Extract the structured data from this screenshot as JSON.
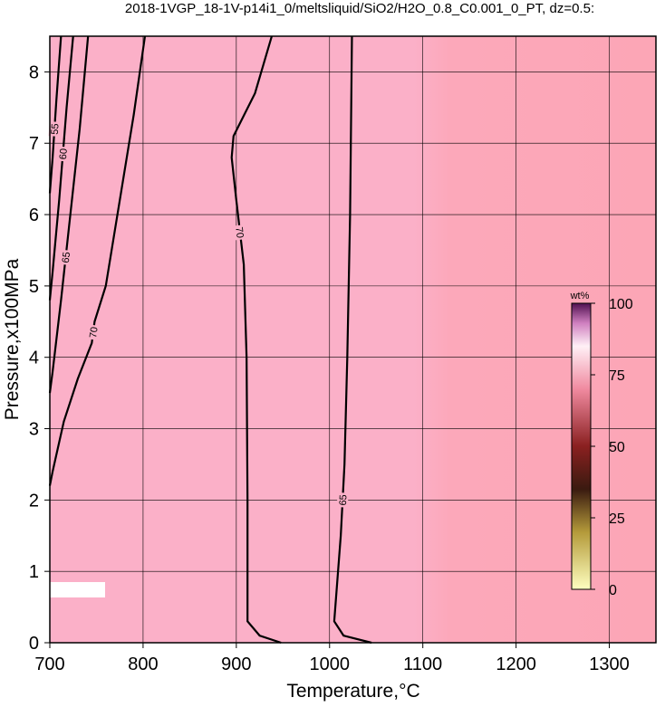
{
  "chart_data": {
    "type": "contour",
    "title": "2018-1VGP_18-1V-p14i1_0/meltsliquid/SiO2/H2O_0.8_C0.001_0_PT, dz=0.5:",
    "x_label": "Temperature,°C",
    "y_label": "Pressure,x100MPa",
    "xlim": [
      700,
      1350
    ],
    "xticks": [
      700,
      800,
      900,
      1000,
      1100,
      1200,
      1300
    ],
    "ylim": [
      0,
      8.5
    ],
    "yticks": [
      0,
      1,
      2,
      3,
      4,
      5,
      6,
      7,
      8
    ],
    "grid": true,
    "colorbar": {
      "label": "wt%",
      "lim": [
        0,
        100
      ],
      "ticks": [
        0,
        25,
        50,
        75,
        100
      ]
    },
    "contours": [
      {
        "level": 70,
        "x": [
          802,
          790,
          775,
          760,
          748,
          745,
          730,
          715,
          703,
          700
        ],
        "y": [
          8.5,
          7.4,
          6.2,
          5.0,
          4.5,
          4.2,
          3.7,
          3.1,
          2.4,
          2.2
        ]
      },
      {
        "level": 70,
        "x": [
          938,
          920,
          897,
          895,
          900,
          908,
          911,
          912,
          912,
          925,
          948
        ],
        "y": [
          8.5,
          7.7,
          7.1,
          6.8,
          6.2,
          5.3,
          4.0,
          2.0,
          0.3,
          0.1,
          0
        ]
      },
      {
        "level": 65,
        "x": [
          1024,
          1022,
          1019,
          1016,
          1012,
          1005,
          1015,
          1045
        ],
        "y": [
          8.5,
          6.0,
          4.0,
          2.5,
          1.5,
          0.3,
          0.1,
          0
        ]
      },
      {
        "level": 65,
        "x": [
          741,
          732,
          722,
          712,
          703,
          700
        ],
        "y": [
          8.5,
          7.2,
          6.0,
          4.8,
          3.8,
          3.5
        ]
      },
      {
        "level": 60,
        "x": [
          725,
          718,
          710,
          703,
          700
        ],
        "y": [
          8.5,
          7.5,
          6.2,
          5.2,
          4.8
        ]
      },
      {
        "level": 55,
        "x": [
          712,
          707,
          703,
          700
        ],
        "y": [
          8.5,
          7.6,
          6.8,
          6.3
        ]
      }
    ]
  }
}
